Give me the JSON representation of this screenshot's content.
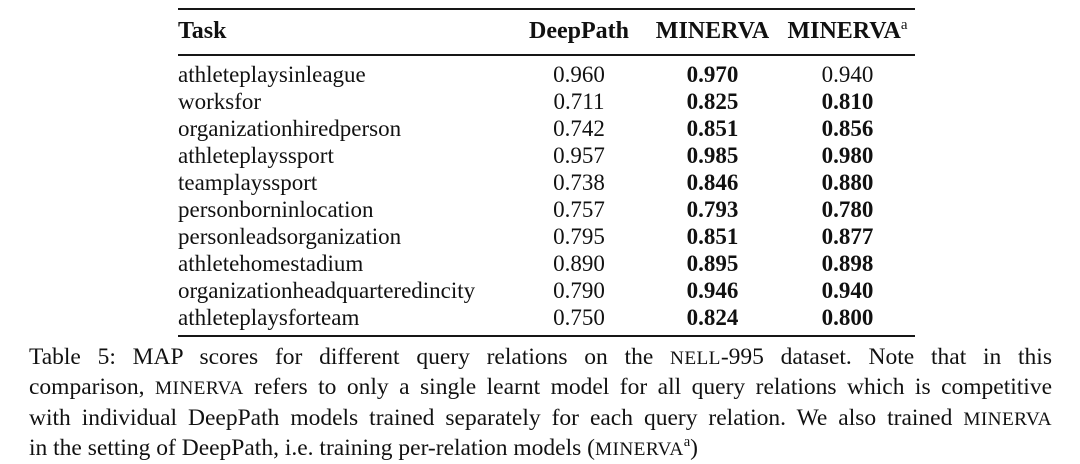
{
  "table": {
    "columns": [
      {
        "label": "Task",
        "align": "left"
      },
      {
        "label": "DeepPath",
        "align": "center"
      },
      {
        "label": "MINERVA",
        "align": "center"
      },
      {
        "label": "MINERVA",
        "sup": "a",
        "align": "center"
      }
    ],
    "rows": [
      {
        "task": "athleteplaysinleague",
        "values": [
          "0.960",
          "0.970",
          "0.940"
        ],
        "bold": [
          false,
          true,
          false
        ]
      },
      {
        "task": "worksfor",
        "values": [
          "0.711",
          "0.825",
          "0.810"
        ],
        "bold": [
          false,
          true,
          true
        ]
      },
      {
        "task": "organizationhiredperson",
        "values": [
          "0.742",
          "0.851",
          "0.856"
        ],
        "bold": [
          false,
          true,
          true
        ]
      },
      {
        "task": "athleteplayssport",
        "values": [
          "0.957",
          "0.985",
          "0.980"
        ],
        "bold": [
          false,
          true,
          true
        ]
      },
      {
        "task": "teamplayssport",
        "values": [
          "0.738",
          "0.846",
          "0.880"
        ],
        "bold": [
          false,
          true,
          true
        ]
      },
      {
        "task": "personborninlocation",
        "values": [
          "0.757",
          "0.793",
          "0.780"
        ],
        "bold": [
          false,
          true,
          true
        ]
      },
      {
        "task": "personleadsorganization",
        "values": [
          "0.795",
          "0.851",
          "0.877"
        ],
        "bold": [
          false,
          true,
          true
        ]
      },
      {
        "task": "athletehomestadium",
        "values": [
          "0.890",
          "0.895",
          "0.898"
        ],
        "bold": [
          false,
          true,
          true
        ]
      },
      {
        "task": "organizationheadquarteredincity",
        "values": [
          "0.790",
          "0.946",
          "0.940"
        ],
        "bold": [
          false,
          true,
          true
        ]
      },
      {
        "task": "athleteplaysforteam",
        "values": [
          "0.750",
          "0.824",
          "0.800"
        ],
        "bold": [
          false,
          true,
          true
        ]
      }
    ]
  },
  "caption": {
    "lines": [
      {
        "justify": true,
        "segments": [
          {
            "text": "Table 5: MAP scores for different query relations on the "
          },
          {
            "text": "NELL",
            "style": "smallcaps"
          },
          {
            "text": "-995 dataset. Note that in this"
          }
        ]
      },
      {
        "justify": true,
        "segments": [
          {
            "text": "comparison, "
          },
          {
            "text": "MINERVA",
            "style": "smallcaps"
          },
          {
            "text": " refers to only a single learnt model for all query relations which is competitive"
          }
        ]
      },
      {
        "justify": true,
        "segments": [
          {
            "text": "with individual DeepPath models trained separately for each query relation. We also trained "
          },
          {
            "text": "MINERVA",
            "style": "smallcaps"
          }
        ]
      },
      {
        "justify": false,
        "segments": [
          {
            "text": "in the setting of DeepPath, i.e. training per-relation models ("
          },
          {
            "text": "MINERVA",
            "style": "smallcaps"
          },
          {
            "text": "a",
            "sup": true
          },
          {
            "text": ")"
          }
        ]
      }
    ]
  }
}
